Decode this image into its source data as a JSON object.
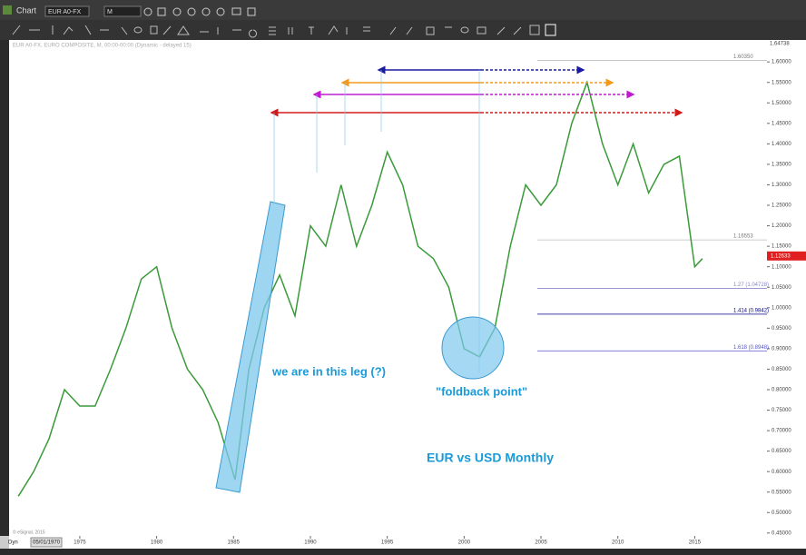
{
  "window": {
    "title": "Chart",
    "symbol": "EUR A0-FX",
    "interval": "M"
  },
  "chart_data": {
    "type": "line",
    "subtitle": "EUR A0-FX, EURO COMPOSITE, M, 00:00-00:00 (Dynamic - delayed 15)",
    "x": [
      1971,
      1972,
      1973,
      1974,
      1975,
      1976,
      1977,
      1978,
      1979,
      1980,
      1981,
      1982,
      1983,
      1984,
      1985.1,
      1985.5,
      1986,
      1987,
      1988,
      1989,
      1990,
      1991,
      1992,
      1993,
      1994,
      1995,
      1996,
      1997,
      1998,
      1999,
      2000,
      2001,
      2002,
      2003,
      2004,
      2005,
      2006,
      2007,
      2008,
      2009,
      2010,
      2011,
      2012,
      2013,
      2014,
      2015,
      2015.5
    ],
    "series": [
      {
        "name": "EUR A0-FX",
        "color": "#3a9a3a",
        "values": [
          0.54,
          0.6,
          0.68,
          0.8,
          0.76,
          0.76,
          0.85,
          0.95,
          1.07,
          1.1,
          0.95,
          0.85,
          0.8,
          0.72,
          0.58,
          0.7,
          0.85,
          1.0,
          1.08,
          0.98,
          1.2,
          1.15,
          1.3,
          1.15,
          1.25,
          1.38,
          1.3,
          1.15,
          1.12,
          1.05,
          0.9,
          0.88,
          0.95,
          1.15,
          1.3,
          1.25,
          1.3,
          1.45,
          1.55,
          1.4,
          1.3,
          1.4,
          1.28,
          1.35,
          1.37,
          1.1,
          1.12
        ]
      }
    ],
    "xlim": [
      1970.4,
      2019.7
    ],
    "xticks": [
      1975,
      1980,
      1985,
      1990,
      1995,
      2000,
      2005,
      2010,
      2015
    ],
    "ylim": [
      0.443,
      1.658
    ],
    "yticks": [
      {
        "value": 0.45,
        "label": "0.45000"
      },
      {
        "value": 0.5,
        "label": "0.50000"
      },
      {
        "value": 0.55,
        "label": "0.55000"
      },
      {
        "value": 0.6,
        "label": "0.60000"
      },
      {
        "value": 0.65,
        "label": "0.65000"
      },
      {
        "value": 0.7,
        "label": "0.70000"
      },
      {
        "value": 0.75,
        "label": "0.75000"
      },
      {
        "value": 0.8,
        "label": "0.80000"
      },
      {
        "value": 0.85,
        "label": "0.85000"
      },
      {
        "value": 0.9,
        "label": "0.90000"
      },
      {
        "value": 0.95,
        "label": "0.95000"
      },
      {
        "value": 1.0,
        "label": "1.00000"
      },
      {
        "value": 1.05,
        "label": "1.05000"
      },
      {
        "value": 1.1,
        "label": "1.10000"
      },
      {
        "value": 1.15,
        "label": "1.15000"
      },
      {
        "value": 1.2,
        "label": "1.20000"
      },
      {
        "value": 1.25,
        "label": "1.25000"
      },
      {
        "value": 1.3,
        "label": "1.30000"
      },
      {
        "value": 1.35,
        "label": "1.35000"
      },
      {
        "value": 1.4,
        "label": "1.40000"
      },
      {
        "value": 1.45,
        "label": "1.45000"
      },
      {
        "value": 1.5,
        "label": "1.50000"
      },
      {
        "value": 1.55,
        "label": "1.55000"
      },
      {
        "value": 1.6,
        "label": "1.60000"
      }
    ],
    "top_label": "1.64738",
    "last": {
      "value": 1.12633,
      "label": "1.12633"
    },
    "levels": [
      {
        "value": 1.6035,
        "label": "1.60350",
        "color": "#bbbbbb"
      },
      {
        "value": 1.16553,
        "label": "1.16553",
        "color": "#bbbbbb"
      },
      {
        "value": 1.04728,
        "label": "1.27 (1.04728)",
        "color": "#8888cc"
      },
      {
        "value": 0.9842,
        "label": "1.414 (0.9842)",
        "color": "#000088"
      },
      {
        "value": 0.8948,
        "label": "1.618 (0.8948)",
        "color": "#5555cc"
      }
    ],
    "annotations": [
      "we are in this leg (?)",
      "\"foldback point\"",
      "EUR vs USD Monthly"
    ]
  },
  "footer": {
    "copyright": "© eSignal, 2015",
    "mode": "Dyn",
    "date": "05/01/1970"
  }
}
